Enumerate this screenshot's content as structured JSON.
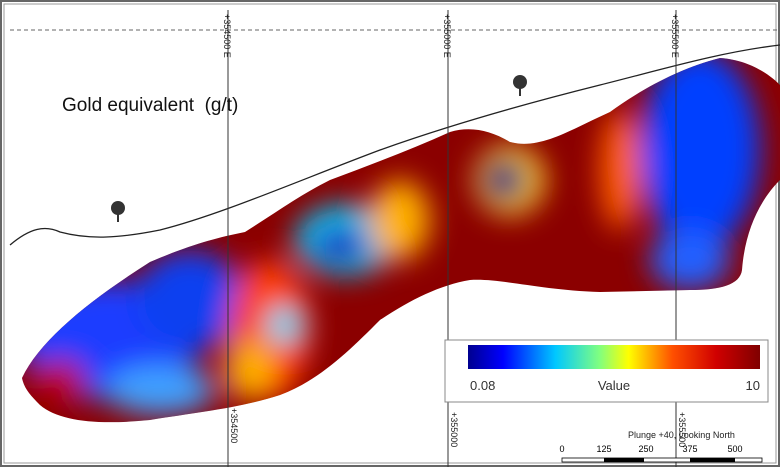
{
  "title": "Gold equivalent  (g/t)",
  "grid_labels_top": [
    "+354500 E",
    "+355000 E",
    "+355500 E"
  ],
  "grid_labels_bottom": [
    "+354500",
    "+355000",
    "+355500"
  ],
  "legend": {
    "min": "0.08",
    "label": "Value",
    "max": "10"
  },
  "view": "Plunge +40, Looking North",
  "scale_bar": [
    "0",
    "125",
    "250",
    "375",
    "500"
  ]
}
